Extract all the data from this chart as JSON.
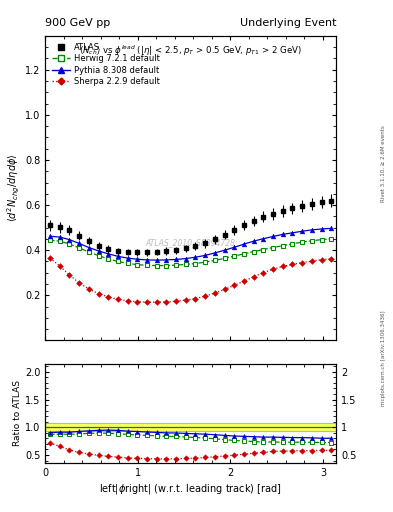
{
  "title_left": "900 GeV pp",
  "title_right": "Underlying Event",
  "subtitle": "$\\langle N_{ch}\\rangle$ vs $\\phi^{lead}$ ($|\\eta|$ < 2.5, $p_T$ > 0.5 GeV, $p_{T1}$ > 2 GeV)",
  "ylabel_main": "$\\langle d^2 N_{chg}/d\\eta d\\phi\\rangle$",
  "ylabel_ratio": "Ratio to ATLAS",
  "xlabel": "left|$\\phi$right| (w.r.t. leading track) [rad]",
  "watermark": "ATLAS_2010_S8894728",
  "right_label_top": "Rivet 3.1.10, ≥ 2.6M events",
  "right_label_bot": "mcplots.cern.ch [arXiv:1306.3436]",
  "ylim_main": [
    0.0,
    1.35
  ],
  "ylim_ratio": [
    0.35,
    2.15
  ],
  "yticks_main": [
    0.2,
    0.4,
    0.6,
    0.8,
    1.0,
    1.2
  ],
  "yticks_ratio": [
    0.5,
    1.0,
    1.5,
    2.0
  ],
  "xlim": [
    0.0,
    3.14159
  ],
  "xticks": [
    0,
    1,
    2,
    3
  ],
  "atlas_x": [
    0.052,
    0.157,
    0.262,
    0.367,
    0.471,
    0.576,
    0.681,
    0.785,
    0.89,
    0.995,
    1.099,
    1.204,
    1.309,
    1.414,
    1.518,
    1.623,
    1.728,
    1.833,
    1.937,
    2.042,
    2.147,
    2.251,
    2.356,
    2.461,
    2.566,
    2.67,
    2.775,
    2.88,
    2.985,
    3.089
  ],
  "atlas_y": [
    0.51,
    0.502,
    0.49,
    0.465,
    0.44,
    0.42,
    0.405,
    0.395,
    0.392,
    0.39,
    0.39,
    0.392,
    0.397,
    0.4,
    0.408,
    0.418,
    0.43,
    0.448,
    0.468,
    0.49,
    0.51,
    0.53,
    0.548,
    0.56,
    0.574,
    0.585,
    0.595,
    0.605,
    0.615,
    0.62
  ],
  "atlas_yerr": [
    0.025,
    0.025,
    0.022,
    0.02,
    0.018,
    0.017,
    0.016,
    0.015,
    0.015,
    0.015,
    0.015,
    0.015,
    0.016,
    0.016,
    0.016,
    0.017,
    0.018,
    0.019,
    0.02,
    0.021,
    0.022,
    0.023,
    0.024,
    0.025,
    0.025,
    0.026,
    0.026,
    0.027,
    0.027,
    0.028
  ],
  "herwig_x": [
    0.052,
    0.157,
    0.262,
    0.367,
    0.471,
    0.576,
    0.681,
    0.785,
    0.89,
    0.995,
    1.099,
    1.204,
    1.309,
    1.414,
    1.518,
    1.623,
    1.728,
    1.833,
    1.937,
    2.042,
    2.147,
    2.251,
    2.356,
    2.461,
    2.566,
    2.67,
    2.775,
    2.88,
    2.985,
    3.089
  ],
  "herwig_y": [
    0.445,
    0.44,
    0.428,
    0.41,
    0.392,
    0.376,
    0.362,
    0.35,
    0.342,
    0.336,
    0.333,
    0.332,
    0.332,
    0.334,
    0.337,
    0.341,
    0.347,
    0.355,
    0.364,
    0.374,
    0.384,
    0.394,
    0.403,
    0.412,
    0.42,
    0.428,
    0.436,
    0.442,
    0.447,
    0.45
  ],
  "pythia_x": [
    0.052,
    0.157,
    0.262,
    0.367,
    0.471,
    0.576,
    0.681,
    0.785,
    0.89,
    0.995,
    1.099,
    1.204,
    1.309,
    1.414,
    1.518,
    1.623,
    1.728,
    1.833,
    1.937,
    2.042,
    2.147,
    2.251,
    2.356,
    2.461,
    2.566,
    2.67,
    2.775,
    2.88,
    2.985,
    3.089
  ],
  "pythia_y": [
    0.462,
    0.458,
    0.447,
    0.43,
    0.412,
    0.397,
    0.384,
    0.373,
    0.365,
    0.36,
    0.357,
    0.356,
    0.357,
    0.359,
    0.363,
    0.369,
    0.377,
    0.388,
    0.4,
    0.413,
    0.427,
    0.44,
    0.451,
    0.461,
    0.47,
    0.477,
    0.484,
    0.49,
    0.494,
    0.497
  ],
  "sherpa_x": [
    0.052,
    0.157,
    0.262,
    0.367,
    0.471,
    0.576,
    0.681,
    0.785,
    0.89,
    0.995,
    1.099,
    1.204,
    1.309,
    1.414,
    1.518,
    1.623,
    1.728,
    1.833,
    1.937,
    2.042,
    2.147,
    2.251,
    2.356,
    2.461,
    2.566,
    2.67,
    2.775,
    2.88,
    2.985,
    3.089
  ],
  "sherpa_y": [
    0.365,
    0.33,
    0.29,
    0.255,
    0.228,
    0.208,
    0.193,
    0.183,
    0.176,
    0.172,
    0.17,
    0.17,
    0.171,
    0.174,
    0.179,
    0.186,
    0.196,
    0.21,
    0.226,
    0.244,
    0.263,
    0.282,
    0.3,
    0.316,
    0.328,
    0.337,
    0.345,
    0.352,
    0.358,
    0.362
  ],
  "atlas_color": "#000000",
  "herwig_color": "#008800",
  "pythia_color": "#0000cc",
  "sherpa_color": "#cc0000",
  "band_ylow": 0.93,
  "band_yhigh": 1.07,
  "band_color": "#ffff66",
  "band_edge_color": "#88ee00"
}
